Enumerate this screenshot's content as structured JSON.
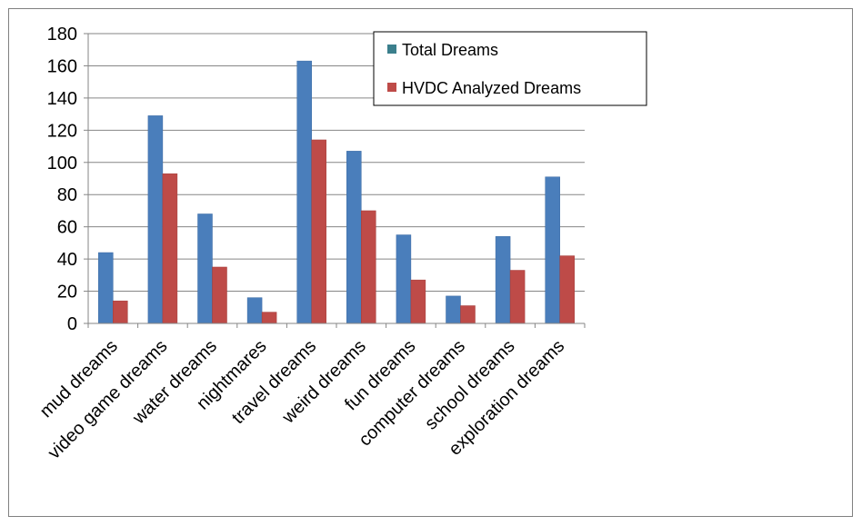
{
  "chart_data": {
    "type": "bar",
    "title": "",
    "xlabel": "",
    "ylabel": "",
    "categories": [
      "mud dreams",
      "video game dreams",
      "water dreams",
      "nightmares",
      "travel dreams",
      "weird dreams",
      "fun dreams",
      "computer dreams",
      "school dreams",
      "exploration dreams"
    ],
    "series": [
      {
        "name": "Total Dreams",
        "color": "#4A7EBB",
        "values": [
          44,
          129,
          68,
          16,
          163,
          107,
          55,
          17,
          54,
          91
        ]
      },
      {
        "name": "HVDC Analyzed Dreams",
        "color": "#BE4B48",
        "values": [
          14,
          93,
          35,
          7,
          114,
          70,
          27,
          11,
          33,
          42
        ]
      }
    ],
    "ylim": [
      0,
      180
    ],
    "yticks": [
      0,
      20,
      40,
      60,
      80,
      100,
      120,
      140,
      160,
      180
    ],
    "grid": true,
    "legend": "top-right",
    "legend_marker_color": "#3B7F8C"
  }
}
